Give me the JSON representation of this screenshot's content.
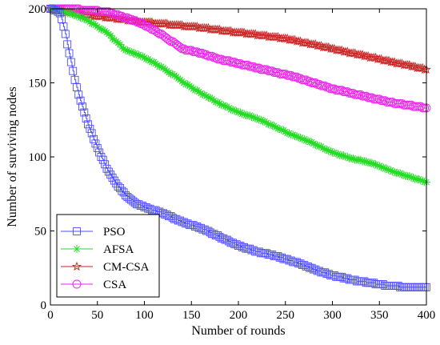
{
  "chart_data": {
    "type": "line",
    "xlabel": "Number of rounds",
    "ylabel": "Number of surviving nodes",
    "xlim": [
      0,
      400
    ],
    "ylim": [
      0,
      200
    ],
    "xticks": [
      0,
      50,
      100,
      150,
      200,
      250,
      300,
      350,
      400
    ],
    "yticks": [
      0,
      50,
      100,
      150,
      200
    ],
    "grid": false,
    "legend_position": "bottom-left",
    "series": [
      {
        "name": "PSO",
        "color": "#4d4dff",
        "marker": "square",
        "x": [
          0,
          5,
          10,
          15,
          20,
          25,
          30,
          40,
          50,
          60,
          70,
          80,
          90,
          100,
          120,
          140,
          160,
          180,
          200,
          220,
          240,
          260,
          280,
          300,
          320,
          340,
          360,
          380,
          400
        ],
        "y": [
          200,
          199,
          197,
          186,
          170,
          155,
          142,
          122,
          106,
          92,
          82,
          74,
          69,
          66,
          62,
          56,
          52,
          46,
          40,
          36,
          33,
          29,
          24,
          20,
          17,
          15,
          13,
          12,
          12
        ]
      },
      {
        "name": "AFSA",
        "color": "#22dd22",
        "marker": "star",
        "x": [
          0,
          20,
          40,
          60,
          80,
          100,
          120,
          140,
          160,
          180,
          200,
          220,
          240,
          260,
          280,
          300,
          320,
          340,
          360,
          380,
          400
        ],
        "y": [
          200,
          197,
          192,
          184,
          172,
          167,
          160,
          151,
          143,
          136,
          130,
          126,
          120,
          114,
          109,
          103,
          99,
          96,
          91,
          87,
          83
        ]
      },
      {
        "name": "CM-CSA",
        "color": "#cc2222",
        "marker": "pentagram",
        "x": [
          0,
          50,
          100,
          150,
          200,
          250,
          300,
          350,
          400
        ],
        "y": [
          200,
          195,
          191,
          188,
          184,
          180,
          173,
          166,
          159
        ]
      },
      {
        "name": "CSA",
        "color": "#ee22ee",
        "marker": "circle",
        "x": [
          0,
          20,
          40,
          60,
          80,
          100,
          120,
          140,
          160,
          180,
          200,
          220,
          240,
          260,
          280,
          300,
          320,
          340,
          360,
          380,
          400
        ],
        "y": [
          200,
          200,
          199,
          198,
          194,
          189,
          182,
          173,
          170,
          166,
          163,
          160,
          157,
          154,
          150,
          146,
          143,
          140,
          137,
          135,
          133
        ]
      }
    ]
  }
}
